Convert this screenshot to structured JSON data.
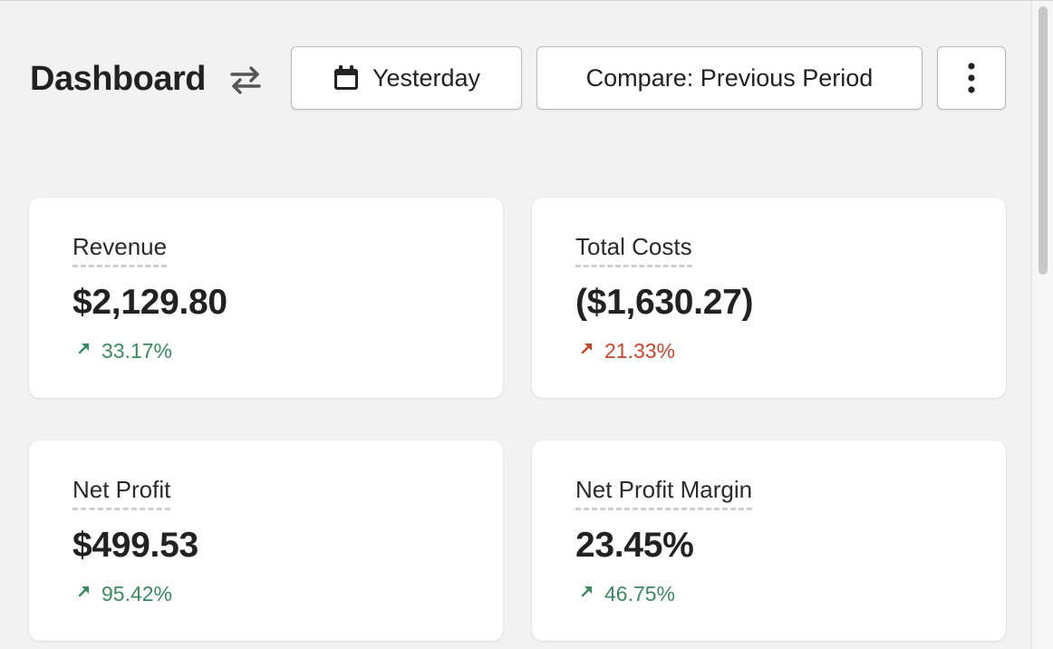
{
  "header": {
    "title": "Dashboard",
    "switch_icon": "arrows-swap-icon",
    "date_button": {
      "icon": "calendar-icon",
      "label": "Yesterday"
    },
    "compare_button": {
      "label": "Compare: Previous Period"
    },
    "more_button": {
      "icon": "vertical-dots-icon"
    }
  },
  "colors": {
    "positive": "#3a8a5f",
    "negative": "#c8442a",
    "background": "#f2f2f2",
    "card": "#ffffff"
  },
  "cards": [
    {
      "label": "Revenue",
      "value": "$2,129.80",
      "change": "33.17%",
      "trend": "up",
      "status": "positive"
    },
    {
      "label": "Total Costs",
      "value": "($1,630.27)",
      "change": "21.33%",
      "trend": "up",
      "status": "negative"
    },
    {
      "label": "Net Profit",
      "value": "$499.53",
      "change": "95.42%",
      "trend": "up",
      "status": "positive"
    },
    {
      "label": "Net Profit Margin",
      "value": "23.45%",
      "change": "46.75%",
      "trend": "up",
      "status": "positive"
    }
  ]
}
